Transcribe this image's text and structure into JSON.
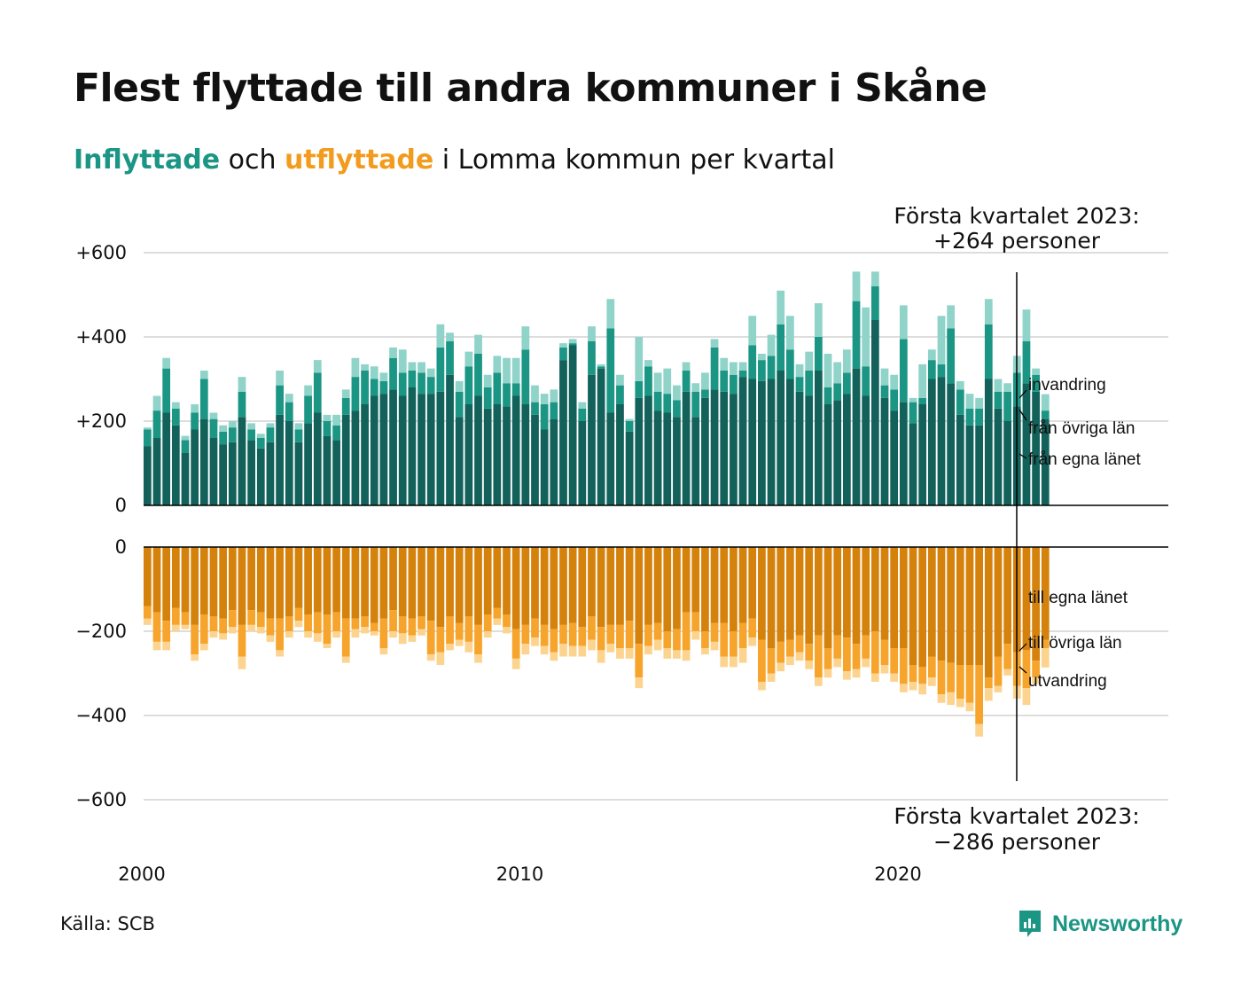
{
  "title": "Flest flyttade till andra kommuner i Skåne",
  "subtitle": {
    "in_label": "Inflyttade",
    "and": " och ",
    "out_label": "utflyttade",
    "rest": " i Lomma kommun per kvartal"
  },
  "callouts": {
    "top_line1": "Första kvartalet 2023:",
    "top_line2": "+264 personer",
    "bottom_line1": "Första kvartalet 2023:",
    "bottom_line2": "−286 personer"
  },
  "source": "Källa: SCB",
  "logo_text": "Newsworthy",
  "colors": {
    "in_egna": "#12615a",
    "in_ovriga": "#1b9584",
    "in_invandring": "#8fd3c9",
    "out_egna": "#d5820d",
    "out_ovriga": "#f6a42b",
    "out_utvandring": "#fcd48f",
    "grid": "#dddddd",
    "brand": "#1b9584"
  },
  "chart_data": {
    "type": "bar",
    "stacked": true,
    "frequency": "quarterly",
    "x_start": "2000 Q1",
    "x_end": "2023 Q1",
    "x_ticks": [
      "2000",
      "2010",
      "2020"
    ],
    "panels": [
      {
        "name": "Inflyttade",
        "ylim": [
          0,
          600
        ],
        "y_ticks": [
          "0",
          "+200",
          "+400",
          "+600"
        ],
        "series": [
          {
            "name": "från egna länet",
            "values": [
              140,
              160,
              220,
              190,
              125,
              180,
              205,
              160,
              145,
              150,
              210,
              155,
              135,
              150,
              215,
              200,
              150,
              195,
              220,
              165,
              155,
              215,
              225,
              240,
              260,
              265,
              275,
              260,
              280,
              265,
              265,
              270,
              310,
              210,
              240,
              260,
              230,
              240,
              235,
              260,
              240,
              215,
              180,
              205,
              345,
              380,
              200,
              310,
              325,
              220,
              240,
              175,
              255,
              260,
              225,
              220,
              210,
              270,
              210,
              255,
              275,
              270,
              265,
              305,
              300,
              295,
              300,
              320,
              300,
              270,
              260,
              320,
              240,
              250,
              265,
              325,
              260,
              440,
              255,
              225,
              245,
              195,
              240,
              300,
              305,
              290,
              215,
              190,
              190,
              300,
              230,
              200,
              235,
              290,
              270,
              205
            ]
          },
          {
            "name": "från övriga län",
            "values": [
              40,
              65,
              105,
              40,
              30,
              40,
              95,
              45,
              30,
              35,
              60,
              25,
              25,
              35,
              70,
              45,
              30,
              65,
              95,
              35,
              35,
              40,
              80,
              80,
              40,
              30,
              75,
              55,
              40,
              50,
              40,
              105,
              80,
              60,
              90,
              100,
              50,
              75,
              55,
              30,
              130,
              30,
              60,
              40,
              30,
              5,
              30,
              80,
              5,
              200,
              45,
              25,
              40,
              70,
              45,
              45,
              40,
              50,
              60,
              20,
              100,
              50,
              45,
              15,
              80,
              50,
              55,
              110,
              70,
              35,
              60,
              80,
              40,
              40,
              50,
              160,
              70,
              80,
              30,
              50,
              150,
              50,
              15,
              45,
              30,
              130,
              60,
              40,
              40,
              130,
              40,
              70,
              80,
              100,
              40,
              20
            ]
          },
          {
            "name": "invandring",
            "values": [
              5,
              35,
              25,
              15,
              10,
              20,
              20,
              15,
              15,
              15,
              35,
              15,
              10,
              10,
              35,
              20,
              15,
              25,
              30,
              15,
              25,
              20,
              45,
              15,
              30,
              20,
              25,
              55,
              20,
              25,
              20,
              55,
              20,
              25,
              35,
              45,
              30,
              40,
              60,
              60,
              55,
              40,
              25,
              30,
              10,
              10,
              15,
              35,
              5,
              70,
              25,
              5,
              105,
              15,
              45,
              60,
              35,
              20,
              20,
              40,
              20,
              30,
              30,
              20,
              70,
              15,
              50,
              80,
              80,
              30,
              45,
              80,
              80,
              50,
              55,
              70,
              140,
              35,
              40,
              35,
              80,
              10,
              80,
              25,
              115,
              55,
              20,
              35,
              25,
              60,
              30,
              20,
              40,
              75,
              15,
              39
            ]
          }
        ]
      },
      {
        "name": "Utflyttade",
        "ylim": [
          -600,
          0
        ],
        "y_ticks": [
          "0",
          "−200",
          "−400",
          "−600"
        ],
        "series": [
          {
            "name": "till egna länet",
            "values": [
              -140,
              -155,
              -175,
              -145,
              -155,
              -185,
              -160,
              -165,
              -170,
              -150,
              -185,
              -150,
              -155,
              -170,
              -170,
              -165,
              -145,
              -160,
              -155,
              -160,
              -155,
              -170,
              -170,
              -165,
              -180,
              -170,
              -150,
              -165,
              -170,
              -165,
              -175,
              -190,
              -165,
              -180,
              -165,
              -185,
              -160,
              -145,
              -160,
              -195,
              -185,
              -170,
              -185,
              -195,
              -185,
              -180,
              -190,
              -165,
              -190,
              -185,
              -185,
              -175,
              -230,
              -185,
              -180,
              -200,
              -195,
              -155,
              -155,
              -200,
              -180,
              -180,
              -200,
              -180,
              -170,
              -220,
              -240,
              -225,
              -220,
              -210,
              -230,
              -210,
              -240,
              -210,
              -215,
              -230,
              -210,
              -200,
              -220,
              -240,
              -240,
              -280,
              -285,
              -260,
              -270,
              -275,
              -280,
              -280,
              -280,
              -310,
              -260,
              -230,
              -250,
              -245,
              -270,
              -220
            ]
          },
          {
            "name": "till övriga län",
            "values": [
              -30,
              -70,
              -50,
              -40,
              -30,
              -70,
              -70,
              -35,
              -35,
              -40,
              -75,
              -35,
              -35,
              -40,
              -75,
              -35,
              -30,
              -40,
              -50,
              -70,
              -45,
              -90,
              -25,
              -25,
              -20,
              -70,
              -50,
              -40,
              -40,
              -30,
              -80,
              -60,
              -65,
              -40,
              -60,
              -70,
              -40,
              -25,
              -30,
              -70,
              -45,
              -45,
              -50,
              -55,
              -45,
              -55,
              -45,
              -55,
              -55,
              -45,
              -55,
              -65,
              -80,
              -50,
              -40,
              -40,
              -50,
              -90,
              -45,
              -40,
              -45,
              -80,
              -60,
              -60,
              -45,
              -100,
              -60,
              -50,
              -40,
              -40,
              -40,
              -100,
              -50,
              -55,
              -80,
              -60,
              -55,
              -100,
              -60,
              -60,
              -85,
              -40,
              -40,
              -50,
              -80,
              -70,
              -80,
              -90,
              -140,
              -25,
              -70,
              -60,
              -80,
              -90,
              -40,
              -20
            ]
          },
          {
            "name": "utvandring",
            "values": [
              -15,
              -20,
              -20,
              -15,
              -10,
              -15,
              -15,
              -15,
              -15,
              -15,
              -30,
              -15,
              -15,
              -15,
              -15,
              -15,
              -15,
              -15,
              -20,
              -10,
              -15,
              -15,
              -20,
              -15,
              -10,
              -15,
              -15,
              -25,
              -15,
              -15,
              -15,
              -30,
              -15,
              -15,
              -25,
              -20,
              -15,
              -15,
              -15,
              -25,
              -25,
              -20,
              -20,
              -20,
              -30,
              -25,
              -25,
              -25,
              -30,
              -20,
              -25,
              -25,
              -25,
              -20,
              -25,
              -25,
              -20,
              -25,
              -20,
              -15,
              -20,
              -25,
              -25,
              -35,
              -20,
              -20,
              -20,
              -20,
              -20,
              -20,
              -20,
              -20,
              -20,
              -20,
              -20,
              -20,
              -20,
              -20,
              -20,
              -20,
              -20,
              -20,
              -25,
              -20,
              -20,
              -30,
              -20,
              -20,
              -30,
              -30,
              -15,
              -15,
              -30,
              -40,
              -15,
              -46
            ]
          }
        ]
      }
    ],
    "annotations": {
      "in": [
        "invandring",
        "från övriga län",
        "från egna länet"
      ],
      "out": [
        "till egna länet",
        "till övriga län",
        "utvandring"
      ]
    }
  }
}
